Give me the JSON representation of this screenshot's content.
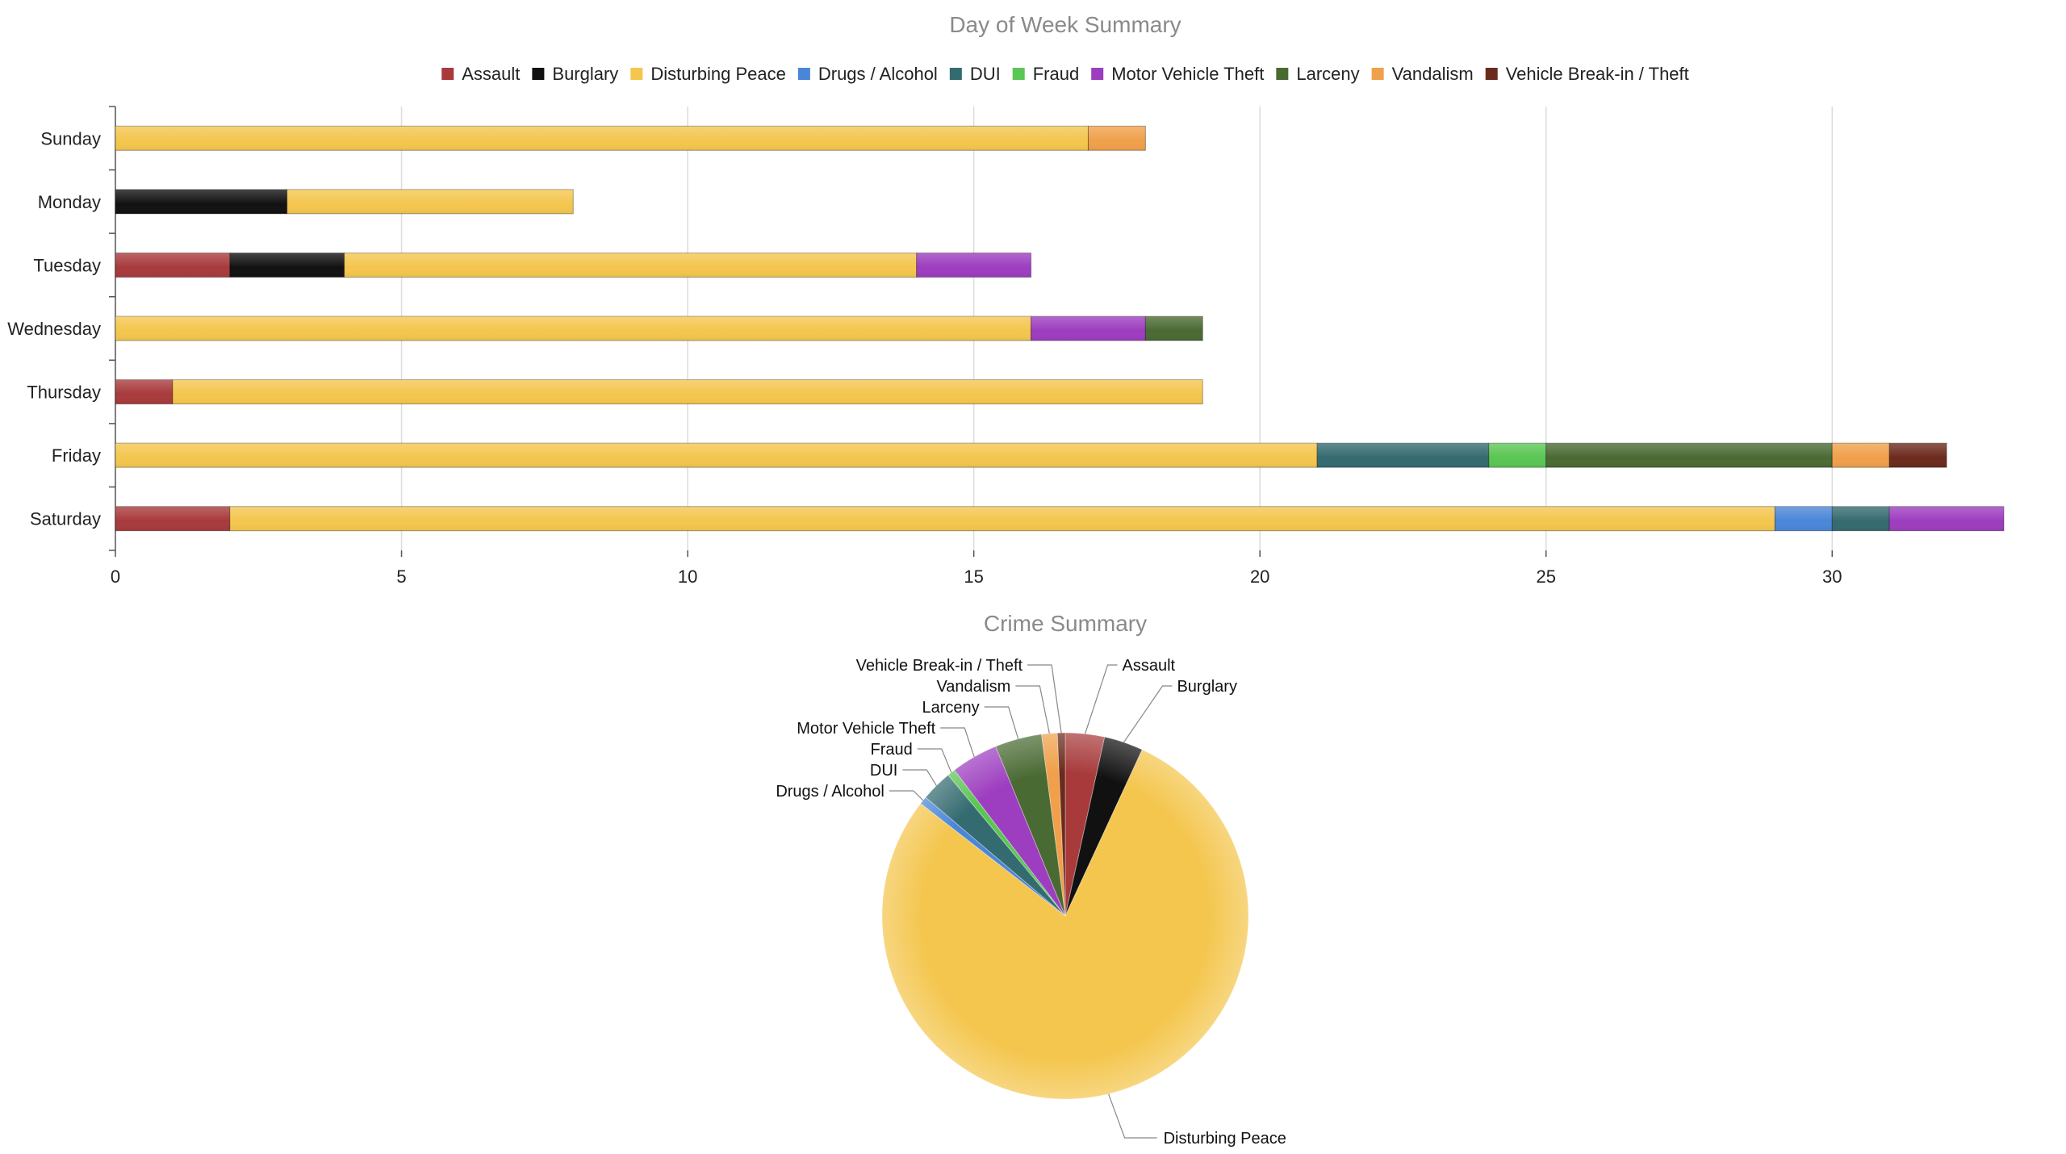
{
  "chart_data": [
    {
      "type": "bar",
      "orientation": "horizontal",
      "stacked": true,
      "title": "Day of Week Summary",
      "legend_position": "top",
      "grid": "vertical",
      "categories": [
        "Sunday",
        "Monday",
        "Tuesday",
        "Wednesday",
        "Thursday",
        "Friday",
        "Saturday"
      ],
      "xlim": [
        0,
        33
      ],
      "x_ticks": [
        0,
        5,
        10,
        15,
        20,
        25,
        30
      ],
      "series": [
        {
          "name": "Assault",
          "color": "#a83a3c",
          "values": [
            0,
            0,
            2,
            0,
            1,
            0,
            2
          ]
        },
        {
          "name": "Burglary",
          "color": "#111111",
          "values": [
            0,
            3,
            2,
            0,
            0,
            0,
            0
          ]
        },
        {
          "name": "Disturbing Peace",
          "color": "#f4c64e",
          "values": [
            17,
            5,
            10,
            16,
            18,
            21,
            27
          ]
        },
        {
          "name": "Drugs / Alcohol",
          "color": "#4a86d8",
          "values": [
            0,
            0,
            0,
            0,
            0,
            0,
            1
          ]
        },
        {
          "name": "DUI",
          "color": "#346b70",
          "values": [
            0,
            0,
            0,
            0,
            0,
            3,
            1
          ]
        },
        {
          "name": "Fraud",
          "color": "#5ac653",
          "values": [
            0,
            0,
            0,
            0,
            0,
            1,
            0
          ]
        },
        {
          "name": "Motor Vehicle Theft",
          "color": "#9d3dbf",
          "values": [
            0,
            0,
            2,
            2,
            0,
            0,
            2
          ]
        },
        {
          "name": "Larceny",
          "color": "#4a6a33",
          "values": [
            0,
            0,
            0,
            1,
            0,
            5,
            0
          ]
        },
        {
          "name": "Vandalism",
          "color": "#f0a04a",
          "values": [
            1,
            0,
            0,
            0,
            0,
            1,
            0
          ]
        },
        {
          "name": "Vehicle Break-in / Theft",
          "color": "#6b2b1c",
          "values": [
            0,
            0,
            0,
            0,
            0,
            1,
            0
          ]
        }
      ]
    },
    {
      "type": "pie",
      "title": "Crime Summary",
      "slices": [
        {
          "label": "Assault",
          "color": "#a83a3c",
          "value": 5
        },
        {
          "label": "Burglary",
          "color": "#111111",
          "value": 5
        },
        {
          "label": "Disturbing Peace",
          "color": "#f4c64e",
          "value": 114
        },
        {
          "label": "Drugs / Alcohol",
          "color": "#4a86d8",
          "value": 1
        },
        {
          "label": "DUI",
          "color": "#346b70",
          "value": 4
        },
        {
          "label": "Fraud",
          "color": "#5ac653",
          "value": 1
        },
        {
          "label": "Motor Vehicle Theft",
          "color": "#9d3dbf",
          "value": 6
        },
        {
          "label": "Larceny",
          "color": "#4a6a33",
          "value": 6
        },
        {
          "label": "Vandalism",
          "color": "#f0a04a",
          "value": 2
        },
        {
          "label": "Vehicle Break-in / Theft",
          "color": "#6b2b1c",
          "value": 1
        }
      ]
    }
  ]
}
